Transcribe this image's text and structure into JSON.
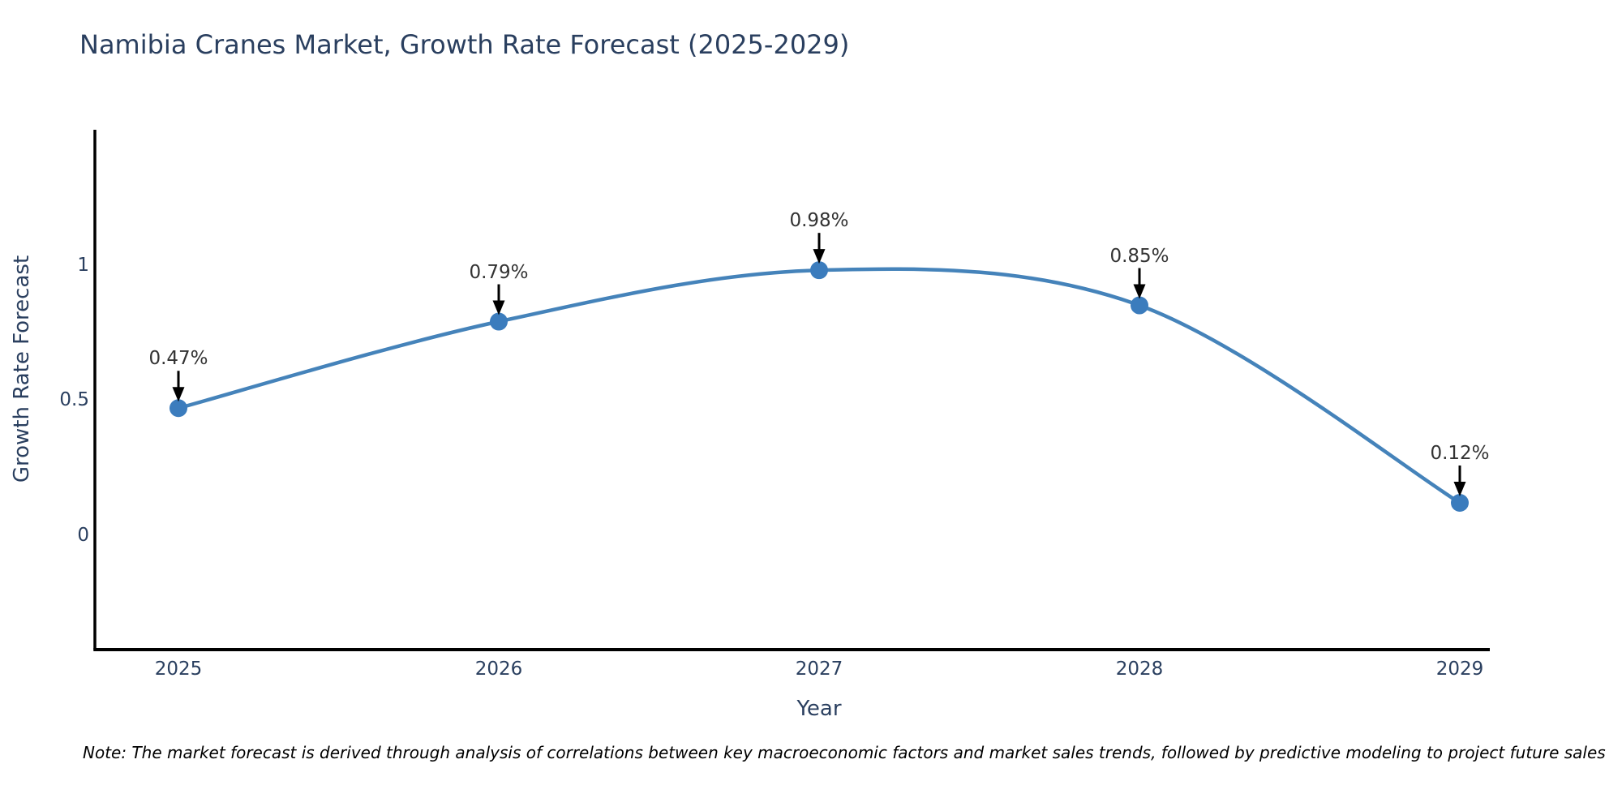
{
  "title": "Namibia Cranes Market, Growth Rate Forecast (2025-2029)",
  "note": "Note: The market forecast is derived through analysis of correlations between key macroeconomic factors and market sales trends, followed by predictive modeling to project future sales",
  "chart_data": {
    "type": "line",
    "line_shape": "spline",
    "x": [
      2025,
      2026,
      2027,
      2028,
      2029
    ],
    "y": [
      0.47,
      0.79,
      0.98,
      0.85,
      0.12
    ],
    "point_labels": [
      "0.47%",
      "0.79%",
      "0.98%",
      "0.85%",
      "0.12%"
    ],
    "xtick_labels": [
      "2025",
      "2026",
      "2027",
      "2028",
      "2029"
    ],
    "ytick_values": [
      0,
      0.5,
      1
    ],
    "ytick_labels": [
      "0",
      "0.5",
      "1"
    ],
    "xlabel": "Year",
    "ylabel": "Growth Rate Forecast",
    "ylim": [
      -0.42,
      1.5
    ],
    "grid": false,
    "legend": "none",
    "markers": true,
    "annotations_have_arrows": true,
    "colors": {
      "line": "#4583ba",
      "marker": "#3b7cbd",
      "axis": "#000000",
      "axis_text": "#2a3f5f",
      "title_text": "#2a3f5f",
      "annotation_text": "#333333",
      "arrow": "#000000",
      "background": "#ffffff"
    }
  }
}
